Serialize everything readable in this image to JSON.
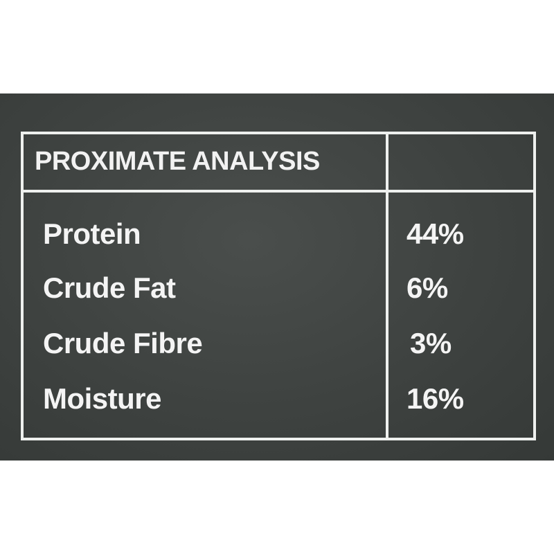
{
  "table": {
    "header": "PROXIMATE ANALYSIS",
    "rows": [
      {
        "label": "Protein",
        "value": "44%"
      },
      {
        "label": "Crude Fat",
        "value": "6%"
      },
      {
        "label": "Crude Fibre",
        "value": "3%"
      },
      {
        "label": "Moisture",
        "value": "16%"
      }
    ]
  },
  "colors": {
    "panel": "#3e4240",
    "text": "#f4f4f4",
    "lines": "#eef0ee"
  }
}
